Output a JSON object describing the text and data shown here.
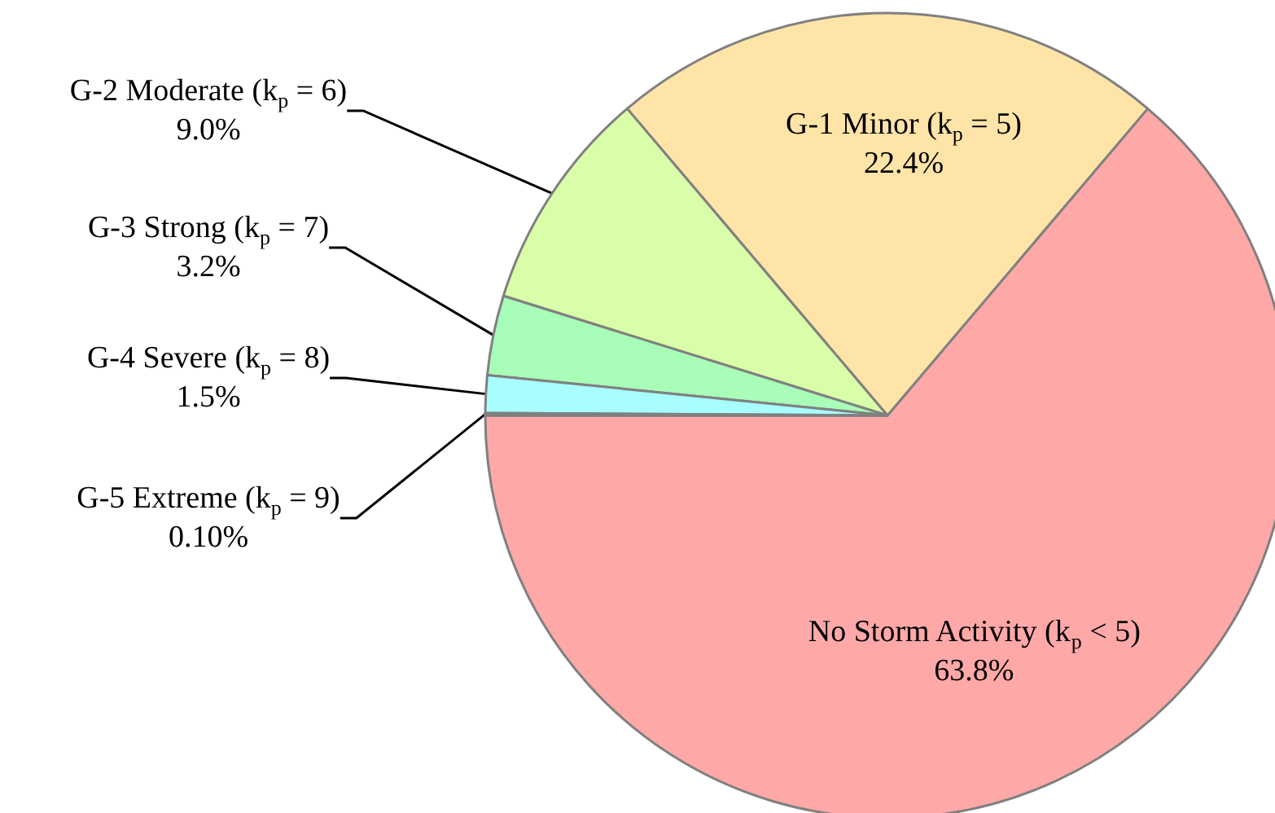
{
  "chart_data": {
    "type": "pie",
    "categories": [
      "No Storm Activity (k$_{p}$ < 5)",
      "G-1 Minor (k$_{p}$ = 5)",
      "G-2 Moderate (k$_{p}$ = 6)",
      "G-3 Strong (k$_{p}$ = 7)",
      "G-4 Severe (k$_{p}$ = 8)",
      "G-5 Extreme (k$_{p}$ = 9)"
    ],
    "values": [
      63.8,
      22.4,
      9.0,
      3.2,
      1.5,
      0.1
    ],
    "value_labels": [
      "63.8%",
      "22.4%",
      "9.0%",
      "3.2%",
      "1.5%",
      "0.10%"
    ],
    "colors": [
      "#ffa8a8",
      "#ffe4a8",
      "#d9fda8",
      "#a8fdb8",
      "#a8fdfd",
      "#a8c8fd"
    ],
    "legend": false
  }
}
